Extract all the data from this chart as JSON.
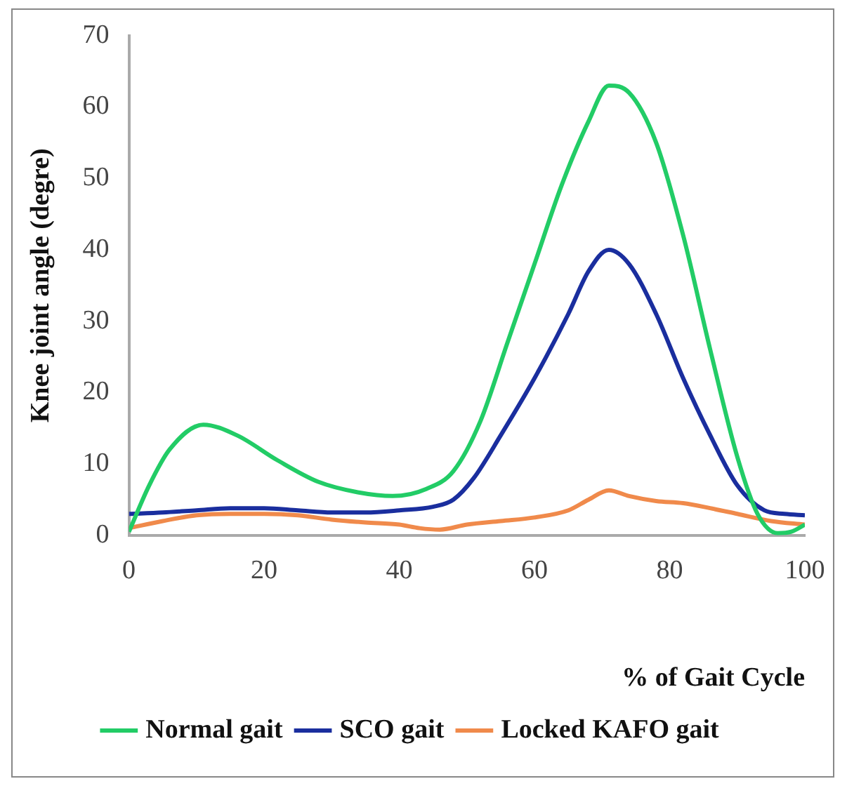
{
  "chart_data": {
    "type": "line",
    "xlabel": "% of Gait Cycle",
    "ylabel": "Knee joint angle (degre)",
    "xlim": [
      0,
      100
    ],
    "xticks": [
      0,
      20,
      40,
      60,
      80,
      100
    ],
    "ylim": [
      0,
      70
    ],
    "yticks": [
      0,
      10,
      20,
      30,
      40,
      50,
      60,
      70
    ],
    "grid": false,
    "legend": "bottom",
    "marker": "none",
    "line_style": "solid",
    "series": [
      {
        "name": "Normal gait",
        "color": "#22cc66",
        "x": [
          0,
          3,
          6,
          11,
          16,
          22,
          28,
          34,
          39,
          44,
          48,
          52,
          56,
          60,
          64,
          68,
          71,
          74,
          78,
          82,
          86,
          90,
          93,
          96,
          98,
          100
        ],
        "values": [
          0.5,
          7,
          12,
          15.5,
          14,
          10.5,
          7.5,
          6,
          5.5,
          6.5,
          9,
          16,
          27,
          38,
          49,
          58,
          63,
          62,
          55,
          42,
          26,
          11,
          3,
          0.3,
          0.5,
          1.5
        ]
      },
      {
        "name": "SCO gait",
        "color": "#1a2e9e",
        "x": [
          0,
          5,
          10,
          15,
          20,
          25,
          30,
          35,
          40,
          45,
          48,
          51,
          55,
          60,
          65,
          68,
          71,
          74,
          78,
          82,
          86,
          90,
          94,
          97,
          100
        ],
        "values": [
          3,
          3.2,
          3.5,
          3.8,
          3.8,
          3.5,
          3.2,
          3.2,
          3.5,
          4,
          5,
          8,
          14,
          22,
          31,
          37,
          40,
          38,
          31,
          22,
          14,
          7,
          3.5,
          3,
          2.8
        ]
      },
      {
        "name": "Locked KAFO gait",
        "color": "#f08a4b",
        "x": [
          0,
          5,
          10,
          15,
          20,
          25,
          30,
          35,
          40,
          43,
          46,
          50,
          55,
          60,
          65,
          68,
          71,
          74,
          78,
          82,
          86,
          90,
          95,
          100
        ],
        "values": [
          1,
          2,
          2.8,
          3,
          3,
          2.8,
          2.2,
          1.8,
          1.5,
          1,
          0.8,
          1.5,
          2,
          2.5,
          3.5,
          5,
          6.3,
          5.5,
          4.8,
          4.5,
          3.8,
          3,
          2,
          1.5
        ]
      }
    ]
  }
}
